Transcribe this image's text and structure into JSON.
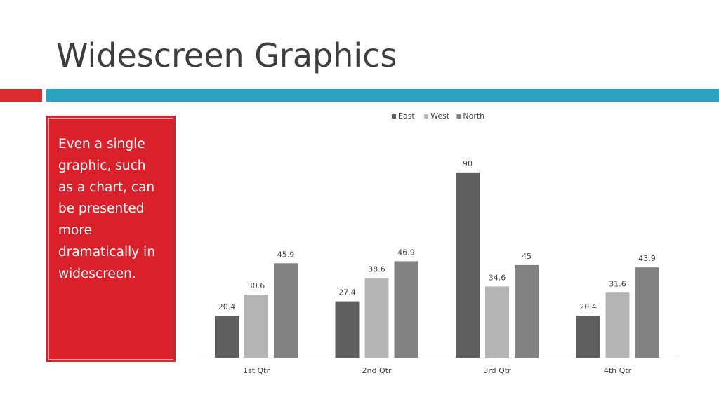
{
  "slide": {
    "title": "Widescreen Graphics",
    "callout_text": "Even a single graphic, such as a chart, can be presented more dramatically in widescreen."
  },
  "colors": {
    "accent_red": "#dd2b2f",
    "accent_teal": "#2ba2bf",
    "callout_bg": "#d8212a",
    "east": "#5f5f5f",
    "west": "#b4b4b4",
    "north": "#828282"
  },
  "chart_data": {
    "type": "bar",
    "categories": [
      "1st Qtr",
      "2nd Qtr",
      "3rd Qtr",
      "4th Qtr"
    ],
    "series": [
      {
        "name": "East",
        "values": [
          20.4,
          27.4,
          90,
          20.4
        ],
        "color": "#5f5f5f"
      },
      {
        "name": "West",
        "values": [
          30.6,
          38.6,
          34.6,
          31.6
        ],
        "color": "#b4b4b4"
      },
      {
        "name": "North",
        "values": [
          45.9,
          46.9,
          45,
          43.9
        ],
        "color": "#828282"
      }
    ],
    "ylim": [
      0,
      100
    ],
    "legend": "top-center",
    "grid": false,
    "data_labels": true
  }
}
